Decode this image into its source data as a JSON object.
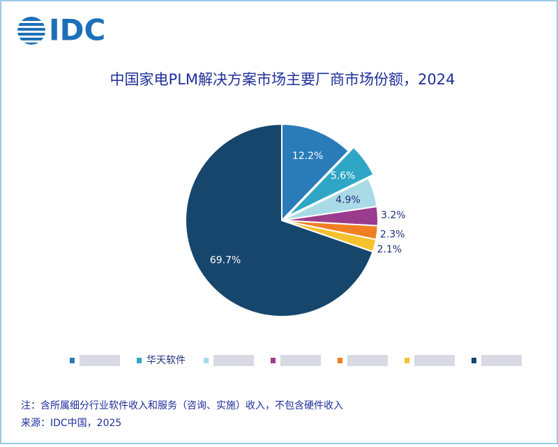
{
  "logo": "IDC",
  "chart_data": {
    "type": "pie",
    "title": "中国家电PLM解决方案市场主要厂商市场份额，2024",
    "categories": [
      null,
      "华天软件",
      null,
      null,
      null,
      null,
      null
    ],
    "values": [
      12.2,
      5.6,
      4.9,
      3.2,
      2.3,
      2.1,
      69.7
    ],
    "value_labels": [
      "12.2%",
      "5.6%",
      "4.9%",
      "3.2%",
      "2.3%",
      "2.1%",
      "69.7%"
    ],
    "colors": [
      "#2a7cb9",
      "#2fa6c6",
      "#a9dbe7",
      "#9b3b8d",
      "#f07f24",
      "#f5c12d",
      "#17466d"
    ],
    "note": "注：含所属细分行业软件收入和服务（咨询、实施）收入，不包含硬件收入",
    "source": "来源：IDC中国，2025"
  }
}
